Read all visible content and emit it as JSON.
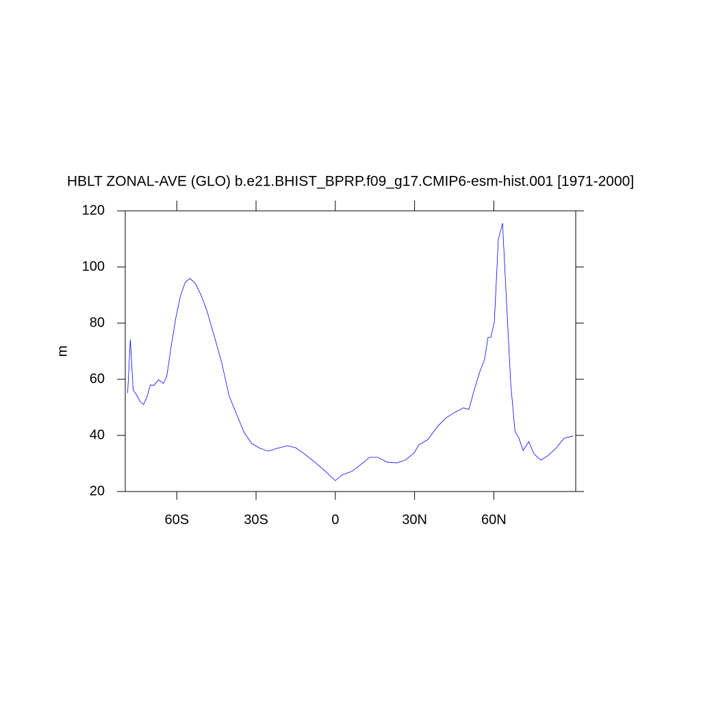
{
  "chart_data": {
    "type": "line",
    "title": "HBLT ZONAL-AVE (GLO) b.e21.BHIST_BPRP.f09_g17.CMIP6-esm-hist.001 [1971-2000]",
    "y_label": "m",
    "xlim": [
      -79.5,
      91
    ],
    "ylim": [
      20,
      120
    ],
    "xticks": [
      {
        "value": -60,
        "label": "60S"
      },
      {
        "value": -30,
        "label": "30S"
      },
      0,
      {
        "value": 30,
        "label": "30N"
      },
      {
        "value": 60,
        "label": "60N"
      }
    ],
    "yticks": [
      20,
      40,
      60,
      80,
      100,
      120
    ],
    "grid": false,
    "x": [
      -78.6,
      -77.6,
      -76.5,
      -75.2,
      -73.9,
      -72.6,
      -71.3,
      -70.0,
      -68.7,
      -66.9,
      -65.1,
      -63.8,
      -62.3,
      -60.4,
      -58.6,
      -56.8,
      -55.0,
      -52.9,
      -50.6,
      -48.5,
      -45.9,
      -43.1,
      -40.2,
      -37.4,
      -34.5,
      -31.6,
      -28.5,
      -25.4,
      -22.0,
      -18.2,
      -15.0,
      -11.7,
      -7.8,
      -3.9,
      0,
      2.6,
      6.5,
      9.9,
      13.0,
      16.1,
      19.5,
      23.3,
      26.5,
      29.8,
      31.6,
      35.0,
      38.9,
      42.0,
      45.4,
      48.5,
      50.6,
      52.4,
      54.5,
      56.5,
      57.8,
      58.9,
      60.2,
      61.7,
      63.3,
      64.8,
      66.4,
      68.0,
      69.5,
      71.1,
      73.2,
      75.2,
      77.8,
      80.4,
      83.5,
      86.6,
      90.0
    ],
    "series": [
      {
        "color": "#0000ff",
        "values": [
          55.1,
          74.1,
          56.1,
          54.4,
          52.0,
          51.0,
          53.7,
          58.0,
          57.8,
          59.8,
          58.5,
          61.0,
          70.7,
          81.7,
          89.8,
          94.6,
          95.9,
          94.1,
          89.5,
          84.1,
          75.6,
          66.3,
          54.1,
          47.6,
          41.0,
          37.1,
          35.4,
          34.4,
          35.4,
          36.3,
          35.6,
          33.4,
          30.5,
          27.3,
          23.9,
          25.9,
          27.3,
          29.8,
          32.2,
          32.2,
          30.5,
          30.2,
          31.2,
          33.7,
          36.6,
          38.5,
          43.4,
          46.3,
          48.3,
          49.8,
          49.3,
          55.6,
          62.2,
          67.1,
          74.9,
          74.9,
          80.5,
          109.8,
          115.6,
          87.8,
          58.5,
          41.5,
          39.0,
          34.6,
          37.8,
          33.4,
          31.2,
          32.7,
          35.4,
          39.0,
          39.8
        ]
      }
    ]
  }
}
